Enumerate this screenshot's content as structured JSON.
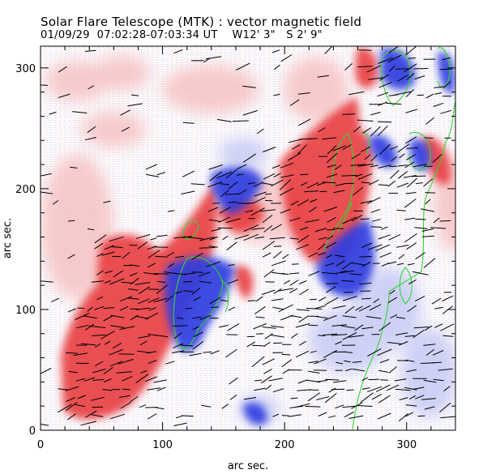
{
  "header": {
    "title": "Solar Flare Telescope (MTK) : vector magnetic field",
    "date": "01/09/29",
    "time_range": "07:02:28-07:03:34 UT",
    "position_w": "W12' 3\"",
    "position_s": "S 2' 9\""
  },
  "chart_data": {
    "type": "heatmap",
    "title": "Solar Flare Telescope (MTK) : vector magnetic field",
    "xlabel": "arc sec.",
    "ylabel": "arc sec.",
    "xlim": [
      0,
      340
    ],
    "ylim": [
      0,
      318
    ],
    "xticks": [
      0,
      100,
      200,
      300
    ],
    "yticks": [
      0,
      100,
      200,
      300
    ],
    "legend": "none",
    "colors": {
      "positive": "#e8383a",
      "negative": "#2d3ee0",
      "contour": "#36d336",
      "vector": "#000000"
    }
  }
}
